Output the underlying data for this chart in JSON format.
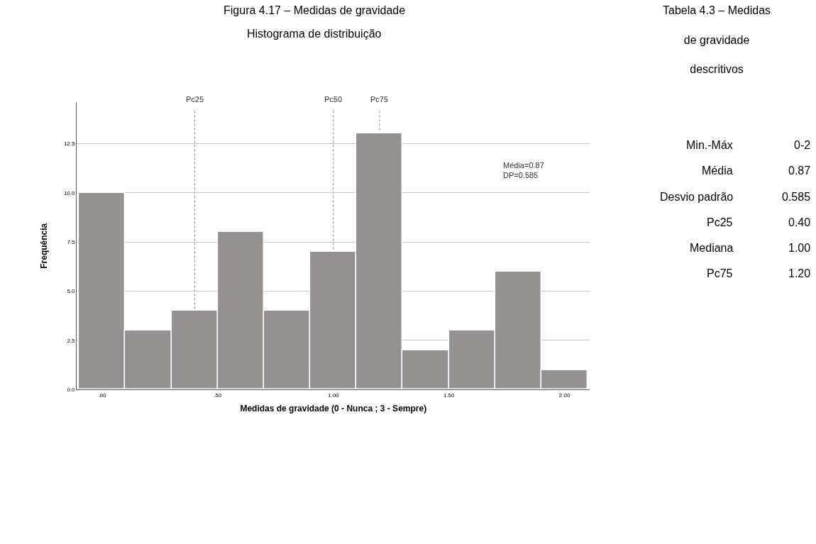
{
  "chart_data": {
    "type": "histogram",
    "title": "Figura 4.17 – Medidas de gravidade",
    "subtitle": "Histograma de distribuição",
    "xlabel": "Medidas de gravidade (0 - Nunca ; 3 - Sempre)",
    "ylabel": "Frequência",
    "bins": [
      -0.1,
      0.1,
      0.3,
      0.5,
      0.7,
      0.9,
      1.1,
      1.3,
      1.5,
      1.7,
      1.9,
      2.1
    ],
    "values": [
      10,
      3,
      4,
      8,
      4,
      7,
      13,
      2,
      3,
      6,
      1
    ],
    "color": "#959190",
    "xlim": [
      -0.11,
      2.11
    ],
    "xticks": [
      {
        "value": 0,
        "label": ".00"
      },
      {
        "value": 0.5,
        "label": ".50"
      },
      {
        "value": 1,
        "label": "1.00"
      },
      {
        "value": 1.5,
        "label": "1.50"
      },
      {
        "value": 2,
        "label": "2.00"
      }
    ],
    "ylim": [
      0,
      14.6
    ],
    "yticks": [
      {
        "value": 0,
        "label": "0.0"
      },
      2.5,
      {
        "value": 5,
        "label": "5.0"
      },
      7.5,
      {
        "value": 10,
        "label": "10.0"
      },
      12.5
    ],
    "grid": "y",
    "ref_lines": [
      {
        "axis": "x",
        "value": 0.4,
        "label": "Pc25",
        "color": "#808080",
        "line_style": "dotted"
      },
      {
        "axis": "x",
        "value": 1.0,
        "label": "Pc50",
        "color": "#808080",
        "line_style": "dotted"
      },
      {
        "axis": "x",
        "value": 1.2,
        "label": "Pc75",
        "color": "#808080",
        "line_style": "dotted"
      }
    ],
    "annotations": [
      "Média=0.87\nDP=0.585",
      "Tabela 4.3 – Medidas\nde gravidade\ndescritivos",
      "Min.-Máx",
      "0-2",
      "Média",
      "0.87",
      "Desvio padrão",
      "0.585",
      "Pc25",
      "0.40",
      "Mediana",
      "1.00",
      "Pc75",
      "1.20"
    ]
  }
}
